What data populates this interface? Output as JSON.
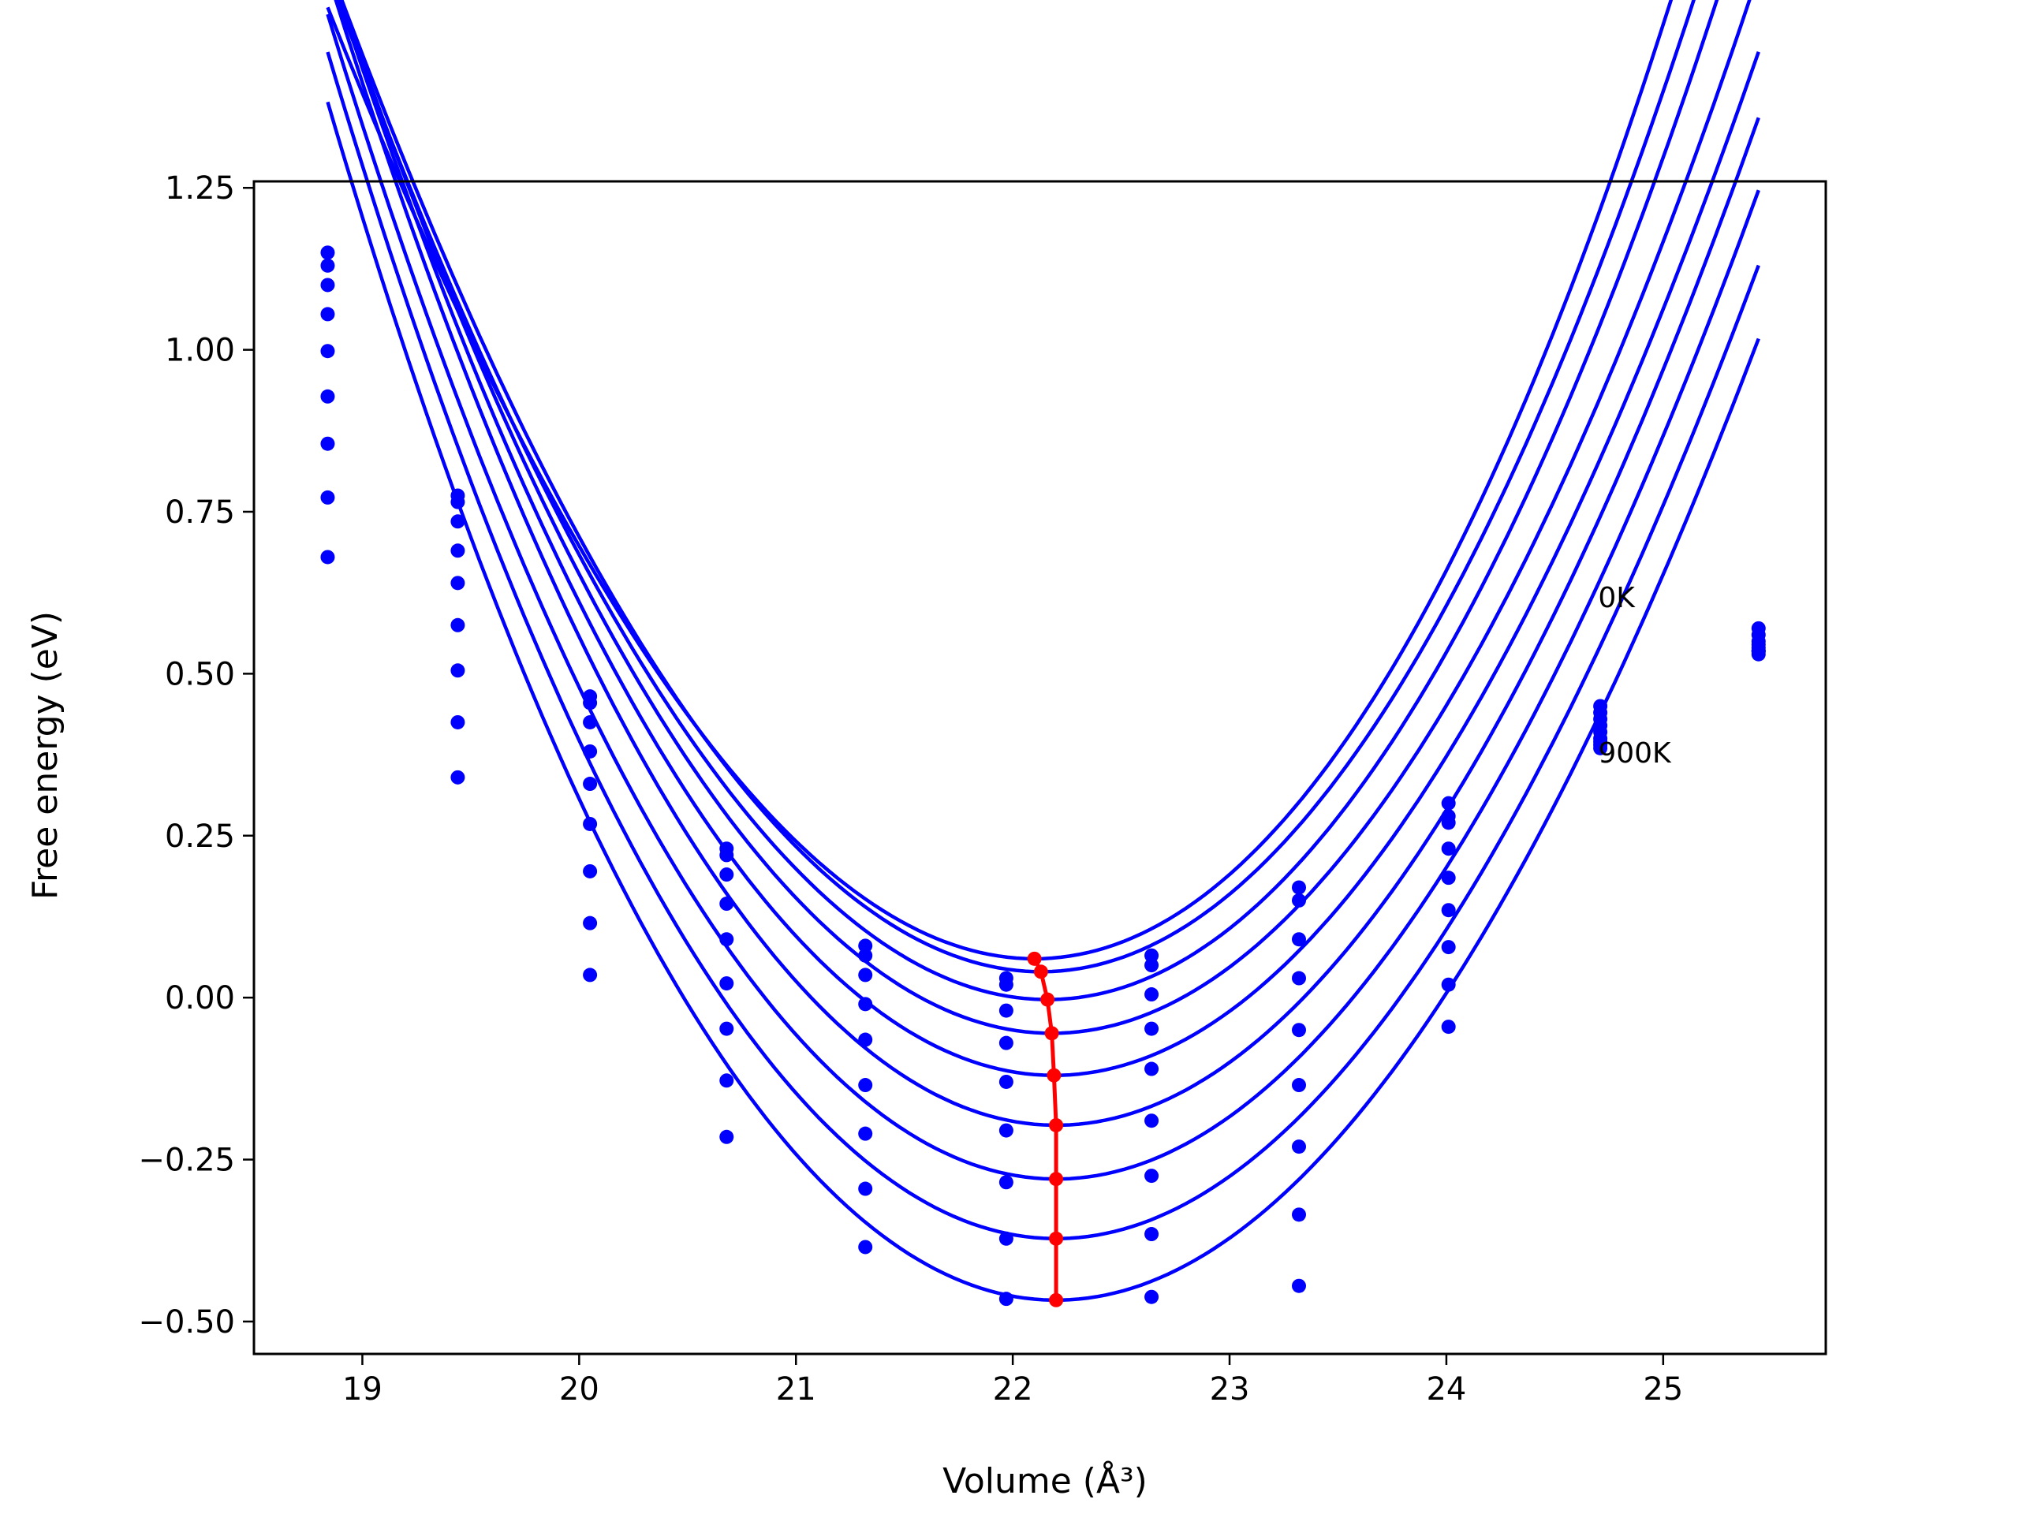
{
  "chart_data": {
    "type": "line",
    "xlabel": "Volume (Å³)",
    "ylabel": "Free energy (eV)",
    "xlim": [
      18.5,
      25.75
    ],
    "ylim": [
      -0.55,
      1.26
    ],
    "xticks": [
      19,
      20,
      21,
      22,
      23,
      24,
      25
    ],
    "xtick_labels": [
      "19",
      "20",
      "21",
      "22",
      "23",
      "24",
      "25"
    ],
    "yticks": [
      -0.5,
      -0.25,
      0.0,
      0.25,
      0.5,
      0.75,
      1.0,
      1.25
    ],
    "ytick_labels": [
      "−0.50",
      "−0.25",
      "0.00",
      "0.25",
      "0.50",
      "0.75",
      "1.00",
      "1.25"
    ],
    "grid": false,
    "annotations": [
      {
        "text": "0K",
        "x": 24.7,
        "y": 0.62
      },
      {
        "text": "900K",
        "x": 24.7,
        "y": 0.38
      }
    ],
    "curve_x_range": [
      18.84,
      25.44
    ],
    "curve_color": "#0000ff",
    "minima_color": "#ff0000",
    "x_points": [
      18.84,
      19.44,
      20.05,
      20.68,
      21.32,
      21.97,
      22.64,
      23.32,
      24.01,
      24.71,
      25.44
    ],
    "series": [
      {
        "v0": 22.1,
        "f0": 0.06,
        "a": 0.1558,
        "b": 0.0054,
        "points": [
          1.15,
          0.775,
          0.465,
          0.23,
          0.08,
          0.03,
          0.065,
          0.17,
          0.3,
          0.45,
          0.57
        ]
      },
      {
        "v0": 22.13,
        "f0": 0.04,
        "a": 0.1552,
        "b": 0.0034,
        "points": [
          1.13,
          0.765,
          0.455,
          0.22,
          0.065,
          0.02,
          0.05,
          0.15,
          0.28,
          0.44,
          0.56
        ]
      },
      {
        "v0": 22.16,
        "f0": -0.003,
        "a": 0.1532,
        "b": 0.0028,
        "points": [
          1.1,
          0.735,
          0.425,
          0.19,
          0.035,
          -0.02,
          0.005,
          0.09,
          0.27,
          0.43,
          0.55
        ]
      },
      {
        "v0": 22.18,
        "f0": -0.055,
        "a": 0.1511,
        "b": 0.0009,
        "points": [
          1.055,
          0.69,
          0.38,
          0.145,
          -0.01,
          -0.07,
          -0.048,
          0.03,
          0.23,
          0.42,
          0.545
        ]
      },
      {
        "v0": 22.19,
        "f0": -0.12,
        "a": 0.1512,
        "b": -0.0005,
        "points": [
          0.998,
          0.64,
          0.33,
          0.09,
          -0.065,
          -0.13,
          -0.11,
          -0.05,
          0.185,
          0.41,
          0.54
        ]
      },
      {
        "v0": 22.2,
        "f0": -0.197,
        "a": 0.1527,
        "b": -0.0014,
        "points": [
          0.928,
          0.575,
          0.268,
          0.022,
          -0.135,
          -0.205,
          -0.19,
          -0.135,
          0.135,
          0.4,
          0.535
        ]
      },
      {
        "v0": 22.2,
        "f0": -0.28,
        "a": 0.1522,
        "b": -0.0021,
        "points": [
          0.855,
          0.505,
          0.195,
          -0.048,
          -0.21,
          -0.285,
          -0.275,
          -0.23,
          0.078,
          0.395,
          0.535
        ]
      },
      {
        "v0": 22.2,
        "f0": -0.372,
        "a": 0.1525,
        "b": -0.0029,
        "points": [
          0.772,
          0.425,
          0.115,
          -0.128,
          -0.295,
          -0.372,
          -0.365,
          -0.335,
          0.02,
          0.39,
          0.535
        ]
      },
      {
        "v0": 22.2,
        "f0": -0.467,
        "a": 0.1524,
        "b": -0.0034,
        "points": [
          0.68,
          0.34,
          0.035,
          -0.215,
          -0.385,
          -0.465,
          -0.462,
          -0.445,
          -0.045,
          0.385,
          0.53
        ]
      }
    ],
    "minima": {
      "x": [
        22.1,
        22.13,
        22.16,
        22.18,
        22.19,
        22.2,
        22.2,
        22.2,
        22.2
      ],
      "y": [
        0.06,
        0.04,
        -0.003,
        -0.055,
        -0.12,
        -0.197,
        -0.28,
        -0.372,
        -0.467
      ]
    }
  }
}
